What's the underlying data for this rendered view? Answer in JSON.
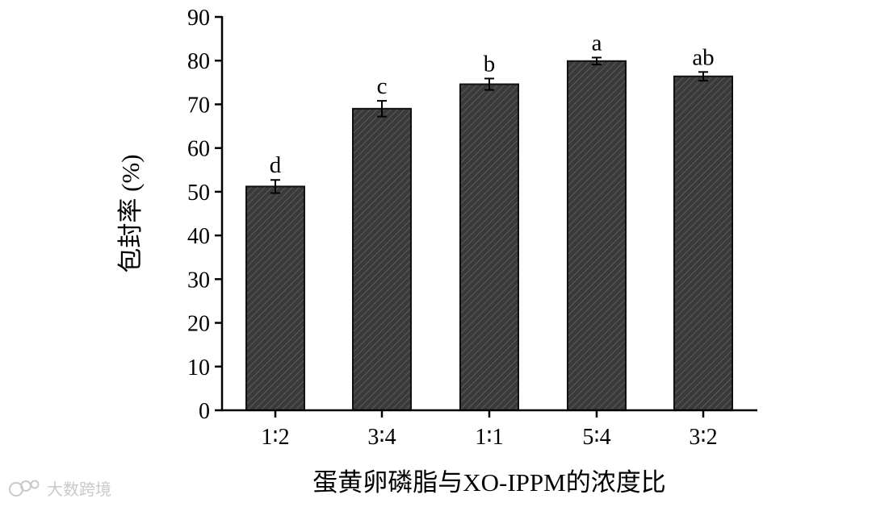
{
  "chart_data": {
    "type": "bar",
    "title": "",
    "xlabel": "蛋黄卵磷脂与XO-IPPM的浓度比",
    "ylabel": "包封率 (%)",
    "ylim": [
      0,
      90
    ],
    "yticks": [
      0,
      10,
      20,
      30,
      40,
      50,
      60,
      70,
      80,
      90
    ],
    "categories": [
      "1∶2",
      "3∶4",
      "1∶1",
      "5∶4",
      "3∶2"
    ],
    "series": [
      {
        "values": [
          51.2,
          69.0,
          74.6,
          79.9,
          76.4
        ],
        "errors": [
          1.5,
          1.8,
          1.3,
          0.8,
          1.0
        ],
        "significance": [
          "d",
          "c",
          "b",
          "a",
          "ab"
        ]
      }
    ],
    "grid": false,
    "legend": "none",
    "bar_fill": "#3a3a3a",
    "bar_hatch": "diagonal"
  },
  "watermark": {
    "text": "大数跨境",
    "icon": "weibo-logo-icon"
  }
}
